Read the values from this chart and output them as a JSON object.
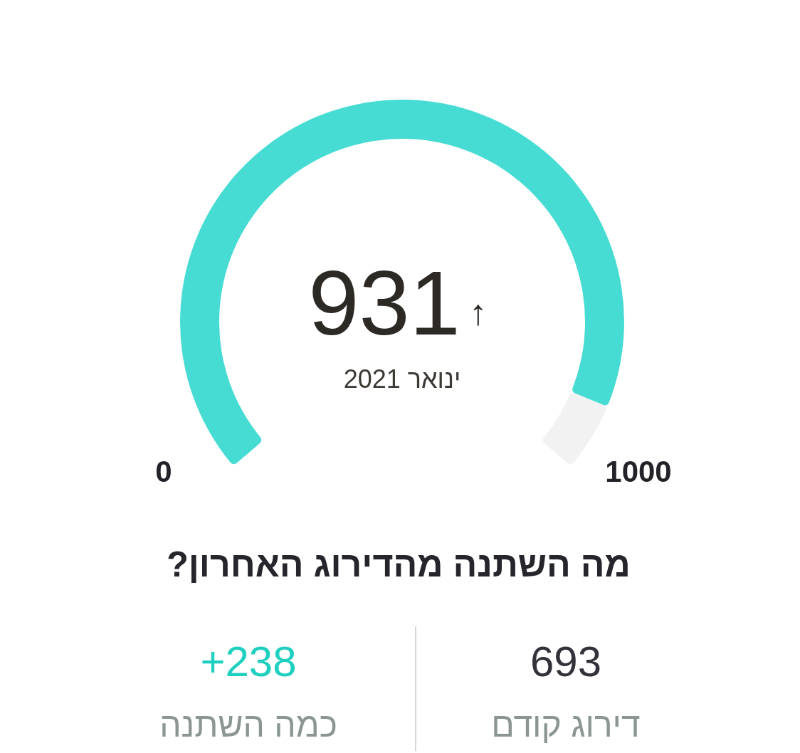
{
  "chart_data": {
    "type": "donut",
    "categories": [
      null,
      null
    ],
    "values": [
      931,
      69
    ],
    "colors": [
      "#47dcd3",
      "#f2f2f2"
    ],
    "value_labels": [
      "931",
      null
    ],
    "annotations": [
      "↑",
      "ינואר 2021",
      "0",
      "1000",
      "מה השתנה מהדירוג האחרון?",
      "693",
      "דירוג קודם",
      "+238",
      "כמה השתנה"
    ]
  }
}
